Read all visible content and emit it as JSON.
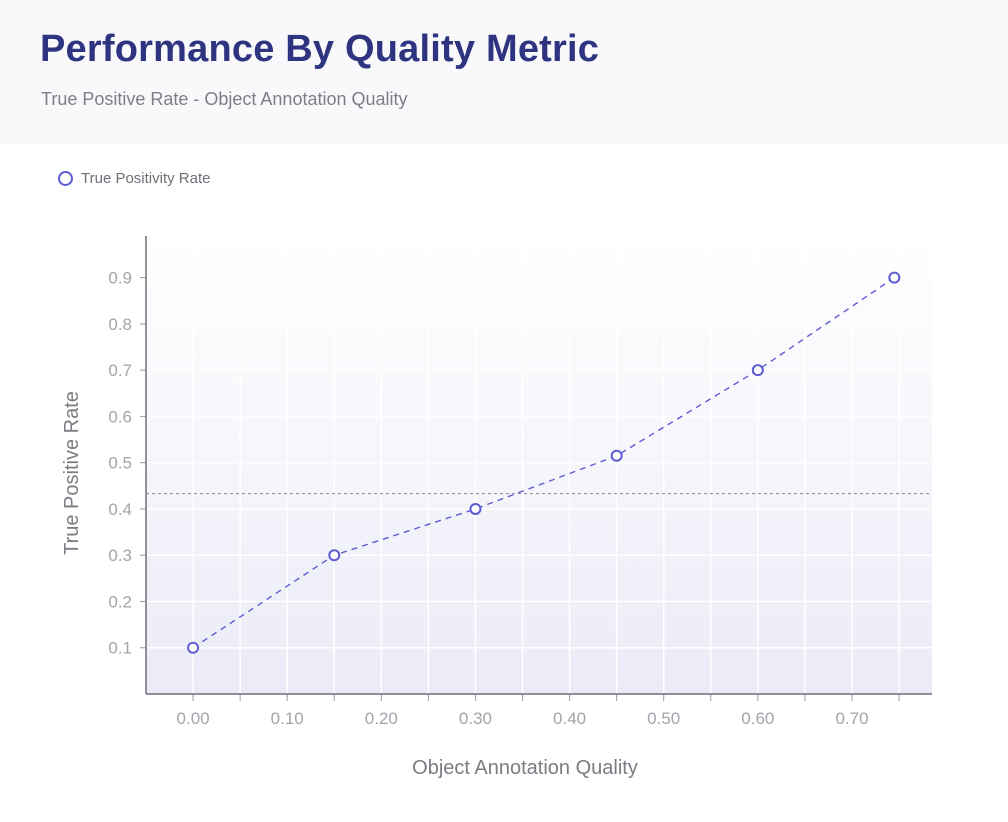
{
  "header": {
    "title": "Performance By Quality Metric",
    "subtitle": "True Positive Rate - Object Annotation Quality"
  },
  "legend": {
    "label": "True Positivity Rate"
  },
  "colors": {
    "series": "#5c5bd4",
    "title": "#2f3480",
    "reference_line": "#8a8a96"
  },
  "chart_data": {
    "type": "line",
    "xlabel": "Object Annotation Quality",
    "ylabel": "True Positive Rate",
    "x_ticks": [
      "0.00",
      "0.10",
      "0.20",
      "0.30",
      "0.40",
      "0.50",
      "0.60",
      "0.70"
    ],
    "y_ticks": [
      "0.1",
      "0.2",
      "0.3",
      "0.4",
      "0.5",
      "0.6",
      "0.7",
      "0.8",
      "0.9"
    ],
    "xlim": [
      -0.05,
      0.785
    ],
    "ylim": [
      0.0,
      0.99
    ],
    "grid": true,
    "legend_position": "top-left",
    "series": [
      {
        "name": "True Positivity Rate",
        "x": [
          0.0,
          0.15,
          0.3,
          0.45,
          0.6,
          0.745
        ],
        "y": [
          0.1,
          0.3,
          0.4,
          0.515,
          0.7,
          0.9
        ]
      }
    ],
    "reference_line_y": 0.433,
    "line_style": "dashed",
    "marker": "hollow-circle"
  }
}
